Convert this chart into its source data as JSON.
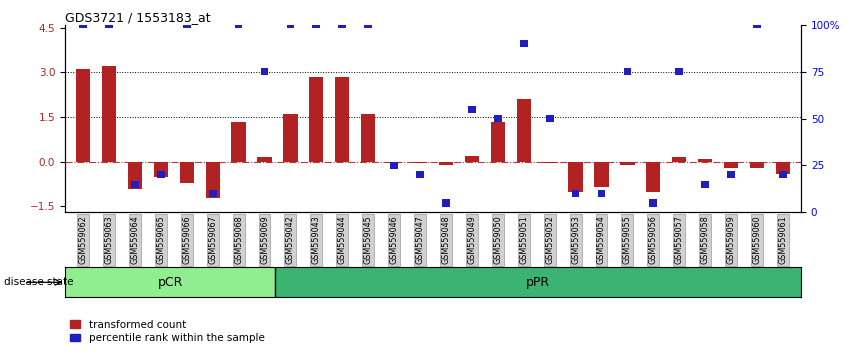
{
  "title": "GDS3721 / 1553183_at",
  "samples": [
    "GSM559062",
    "GSM559063",
    "GSM559064",
    "GSM559065",
    "GSM559066",
    "GSM559067",
    "GSM559068",
    "GSM559069",
    "GSM559042",
    "GSM559043",
    "GSM559044",
    "GSM559045",
    "GSM559046",
    "GSM559047",
    "GSM559048",
    "GSM559049",
    "GSM559050",
    "GSM559051",
    "GSM559052",
    "GSM559053",
    "GSM559054",
    "GSM559055",
    "GSM559056",
    "GSM559057",
    "GSM559058",
    "GSM559059",
    "GSM559060",
    "GSM559061"
  ],
  "red_bars": [
    3.1,
    3.2,
    -0.9,
    -0.5,
    -0.7,
    -1.2,
    1.35,
    0.15,
    1.6,
    2.85,
    2.85,
    1.6,
    -0.05,
    -0.05,
    -0.1,
    0.2,
    1.35,
    2.1,
    -0.05,
    -1.0,
    -0.85,
    -0.1,
    -1.0,
    0.15,
    0.1,
    -0.2,
    -0.2,
    -0.4
  ],
  "blue_squares_pct": [
    100,
    100,
    15,
    20,
    100,
    10,
    100,
    75,
    100,
    100,
    100,
    100,
    25,
    20,
    5,
    55,
    50,
    90,
    50,
    10,
    10,
    75,
    5,
    75,
    15,
    20,
    100,
    20
  ],
  "pCR_count": 8,
  "ylim_left": [
    -1.7,
    4.6
  ],
  "ylim_right": [
    0,
    100
  ],
  "yticks_left": [
    -1.5,
    0.0,
    1.5,
    3.0,
    4.5
  ],
  "yticks_right": [
    0,
    25,
    50,
    75,
    100
  ],
  "ytick_right_labels": [
    "0",
    "25",
    "50",
    "75",
    "100%"
  ],
  "hlines": [
    3.0,
    1.5
  ],
  "bar_color": "#b22222",
  "square_color": "#1f1fbf",
  "pCR_color": "#90ee90",
  "pPR_color": "#3cb371",
  "label_red": "transformed count",
  "label_blue": "percentile rank within the sample",
  "disease_state_label": "disease state",
  "pCR_label": "pCR",
  "pPR_label": "pPR"
}
